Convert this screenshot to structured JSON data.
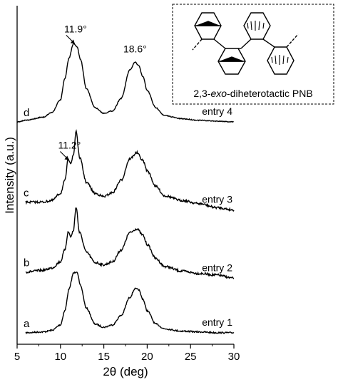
{
  "chart_data": {
    "type": "line",
    "xlabel": "2θ (deg)",
    "ylabel": "Intensity (a.u.)",
    "xlim": [
      5,
      30
    ],
    "x_ticks": [
      "5",
      "10",
      "15",
      "20",
      "25",
      "30"
    ],
    "series": [
      {
        "name": "entry 1",
        "trace_label": "a",
        "x": [
          6,
          8,
          9,
          10,
          10.5,
          11,
          11.5,
          11.9,
          12.3,
          13,
          14,
          15,
          16,
          17,
          18,
          18.6,
          19,
          19.5,
          20,
          21,
          22,
          24,
          26,
          28,
          30
        ],
        "y": [
          0.02,
          0.03,
          0.05,
          0.12,
          0.3,
          0.58,
          0.78,
          0.8,
          0.62,
          0.33,
          0.13,
          0.09,
          0.12,
          0.24,
          0.47,
          0.58,
          0.57,
          0.45,
          0.3,
          0.13,
          0.07,
          0.04,
          0.03,
          0.02,
          0.02
        ]
      },
      {
        "name": "entry 2",
        "trace_label": "b",
        "x": [
          6,
          8,
          9,
          10,
          10.5,
          10.9,
          11.2,
          11.5,
          11.8,
          12.2,
          13,
          14,
          15,
          16,
          17,
          18,
          18.8,
          19.5,
          20,
          21,
          22,
          24,
          26,
          28,
          30
        ],
        "y": [
          0.05,
          0.07,
          0.1,
          0.18,
          0.33,
          0.56,
          0.5,
          0.58,
          0.88,
          0.55,
          0.3,
          0.17,
          0.14,
          0.18,
          0.33,
          0.55,
          0.6,
          0.52,
          0.4,
          0.22,
          0.12,
          0.06,
          0.03,
          0.01,
          -0.03
        ]
      },
      {
        "name": "entry 3",
        "trace_label": "c",
        "x": [
          6,
          8,
          9,
          10,
          10.5,
          10.9,
          11.2,
          11.5,
          11.8,
          12.2,
          13,
          14,
          15,
          16,
          17,
          18,
          18.8,
          19.5,
          20,
          21,
          22,
          24,
          26,
          28,
          30
        ],
        "y": [
          0.05,
          0.05,
          0.07,
          0.16,
          0.32,
          0.6,
          0.55,
          0.65,
          0.96,
          0.62,
          0.3,
          0.16,
          0.12,
          0.17,
          0.33,
          0.6,
          0.68,
          0.58,
          0.45,
          0.25,
          0.13,
          0.07,
          0.03,
          -0.02,
          -0.05
        ]
      },
      {
        "name": "entry 4",
        "trace_label": "d",
        "x": [
          5,
          6,
          8,
          9,
          10,
          10.5,
          11,
          11.5,
          11.9,
          12.3,
          13,
          14,
          15,
          16,
          17,
          18,
          18.6,
          19,
          19.5,
          20,
          21,
          22,
          24,
          26,
          28,
          30
        ],
        "y": [
          0.0,
          0.02,
          0.06,
          0.12,
          0.28,
          0.55,
          0.82,
          1.0,
          0.96,
          0.8,
          0.42,
          0.18,
          0.11,
          0.14,
          0.3,
          0.66,
          0.76,
          0.72,
          0.58,
          0.4,
          0.18,
          0.08,
          0.04,
          0.02,
          0.01,
          0.0
        ]
      }
    ],
    "annotations": [
      {
        "text": "11.9°",
        "series": "entry 4",
        "x": 11.9
      },
      {
        "text": "18.6°",
        "series": "entry 4",
        "x": 18.6
      },
      {
        "text": "11.2°",
        "series": "entry 3",
        "x": 11.2
      }
    ],
    "grid": false,
    "legend": "none",
    "line_color": "#000000"
  },
  "inset": {
    "caption_pre": "2,3-",
    "caption_italic": "exo",
    "caption_post": "-diheterotactic PNB"
  }
}
